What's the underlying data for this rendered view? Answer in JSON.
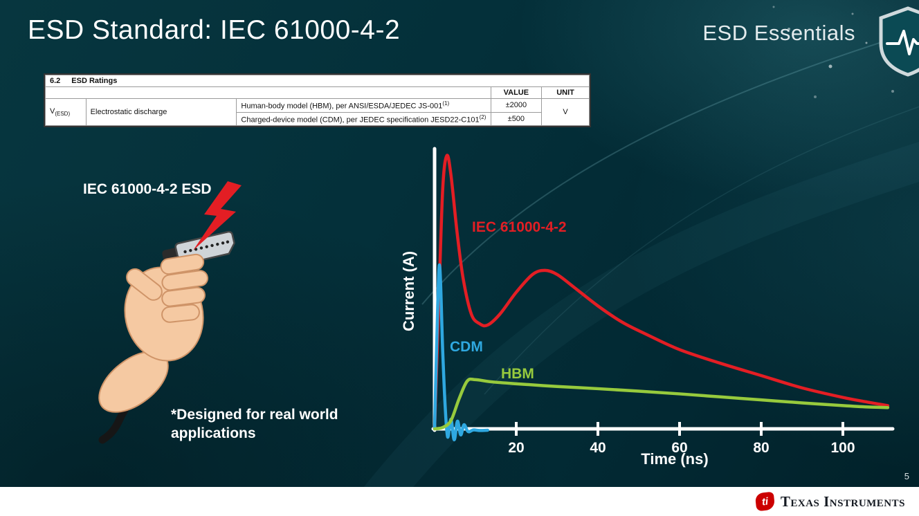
{
  "slide": {
    "title": "ESD Standard: IEC 61000-4-2",
    "series_label": "ESD Essentials",
    "page_number": "5"
  },
  "ratings_table": {
    "section_no": "6.2",
    "section_name": "ESD Ratings",
    "columns": {
      "value": "VALUE",
      "unit": "UNIT"
    },
    "param": {
      "base": "V",
      "sub": "(ESD)",
      "name": "Electrostatic discharge"
    },
    "rows": [
      {
        "model": "Human-body model (HBM), per ANSI/ESDA/JEDEC JS-001",
        "footnote": "(1)",
        "value": "±2000"
      },
      {
        "model": "Charged-device model (CDM), per JEDEC specification JESD22-C101",
        "footnote": "(2)",
        "value": "±500"
      }
    ],
    "unit": "V"
  },
  "illustration": {
    "caption": "IEC 61000-4-2 ESD",
    "note": "*Designed for real world applications"
  },
  "chart_data": {
    "type": "line",
    "title": "",
    "xlabel": "Time (ns)",
    "ylabel": "Current (A)",
    "xlim": [
      0,
      112
    ],
    "x_ticks": [
      20,
      40,
      60,
      80,
      100
    ],
    "ylim": [
      0,
      1.05
    ],
    "y_units": "normalized to IEC 61000-4-2 peak = 1.0 (no y tick labels shown)",
    "grid": false,
    "legend_position": "inline-labels",
    "series": [
      {
        "name": "IEC 61000-4-2",
        "color": "#e31e24",
        "x": [
          0,
          1,
          2,
          3,
          4,
          5.5,
          7,
          9,
          11,
          13,
          16,
          20,
          24,
          27,
          30,
          34,
          40,
          46,
          52,
          60,
          70,
          80,
          90,
          100,
          106,
          111
        ],
        "y": [
          0,
          0.45,
          0.88,
          1.0,
          0.93,
          0.72,
          0.55,
          0.42,
          0.385,
          0.38,
          0.42,
          0.5,
          0.565,
          0.58,
          0.565,
          0.52,
          0.45,
          0.39,
          0.345,
          0.29,
          0.24,
          0.195,
          0.15,
          0.115,
          0.098,
          0.085
        ]
      },
      {
        "name": "CDM",
        "color": "#2fa8e0",
        "x": [
          0,
          0.5,
          1.2,
          2,
          2.6,
          3.2,
          4,
          4.8,
          5.6,
          6.4,
          7.2,
          8.2,
          9.5,
          11,
          13
        ],
        "y": [
          0,
          0.3,
          0.6,
          0.28,
          0.08,
          -0.03,
          0.035,
          -0.04,
          0.028,
          -0.022,
          0.015,
          -0.01,
          -0.004,
          -0.006,
          -0.005
        ]
      },
      {
        "name": "HBM",
        "color": "#97ca3d",
        "x": [
          0,
          2,
          4,
          6,
          8,
          10,
          14,
          20,
          30,
          40,
          50,
          60,
          70,
          80,
          90,
          100,
          106,
          111
        ],
        "y": [
          0,
          0.005,
          0.03,
          0.11,
          0.175,
          0.18,
          0.172,
          0.165,
          0.155,
          0.147,
          0.138,
          0.128,
          0.117,
          0.106,
          0.095,
          0.085,
          0.08,
          0.078
        ]
      }
    ]
  },
  "footer": {
    "brand": "Texas Instruments",
    "logo_glyph": "ti"
  }
}
